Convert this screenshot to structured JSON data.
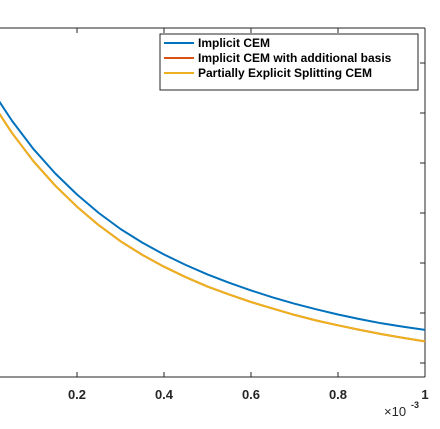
{
  "chart_data": {
    "type": "line",
    "title": "",
    "xlabel": "",
    "ylabel": "",
    "xlim": [
      0.0,
      1.0
    ],
    "x_multiplier": "×10",
    "x_multiplier_exponent": "-3",
    "x_ticks": [
      0.2,
      0.4,
      0.6,
      0.8,
      1
    ],
    "x_tick_labels": [
      "0.2",
      "0.4",
      "0.6",
      "0.8",
      "1"
    ],
    "ylim": [
      0,
      100
    ],
    "grid": false,
    "legend_position": "top-right",
    "x": [
      0.0,
      0.05,
      0.1,
      0.15,
      0.2,
      0.25,
      0.3,
      0.35,
      0.4,
      0.45,
      0.5,
      0.55,
      0.6,
      0.65,
      0.7,
      0.75,
      0.8,
      0.85,
      0.9,
      0.95,
      1.0
    ],
    "series": [
      {
        "name": "Implicit CEM",
        "color": "#0072BD",
        "values": [
          83.0,
          73.5,
          65.3,
          58.3,
          52.3,
          47.0,
          42.4,
          38.5,
          35.1,
          32.1,
          29.4,
          27.0,
          24.8,
          22.8,
          21.0,
          19.4,
          17.9,
          16.6,
          15.4,
          14.4,
          13.5
        ]
      },
      {
        "name": "Implicit CEM with additional basis",
        "color": "#D95319",
        "values": [
          79.5,
          70.0,
          61.8,
          54.8,
          48.8,
          43.5,
          38.9,
          35.0,
          31.6,
          28.6,
          25.9,
          23.6,
          21.5,
          19.6,
          17.8,
          16.2,
          14.8,
          13.5,
          12.3,
          11.2,
          10.2
        ]
      },
      {
        "name": "Partially Explicit Splitting CEM",
        "color": "#EDB120",
        "values": [
          79.5,
          70.0,
          61.8,
          54.8,
          48.8,
          43.5,
          38.9,
          35.0,
          31.6,
          28.6,
          25.9,
          23.6,
          21.5,
          19.6,
          17.8,
          16.2,
          14.8,
          13.5,
          12.3,
          11.2,
          10.2
        ]
      }
    ]
  }
}
